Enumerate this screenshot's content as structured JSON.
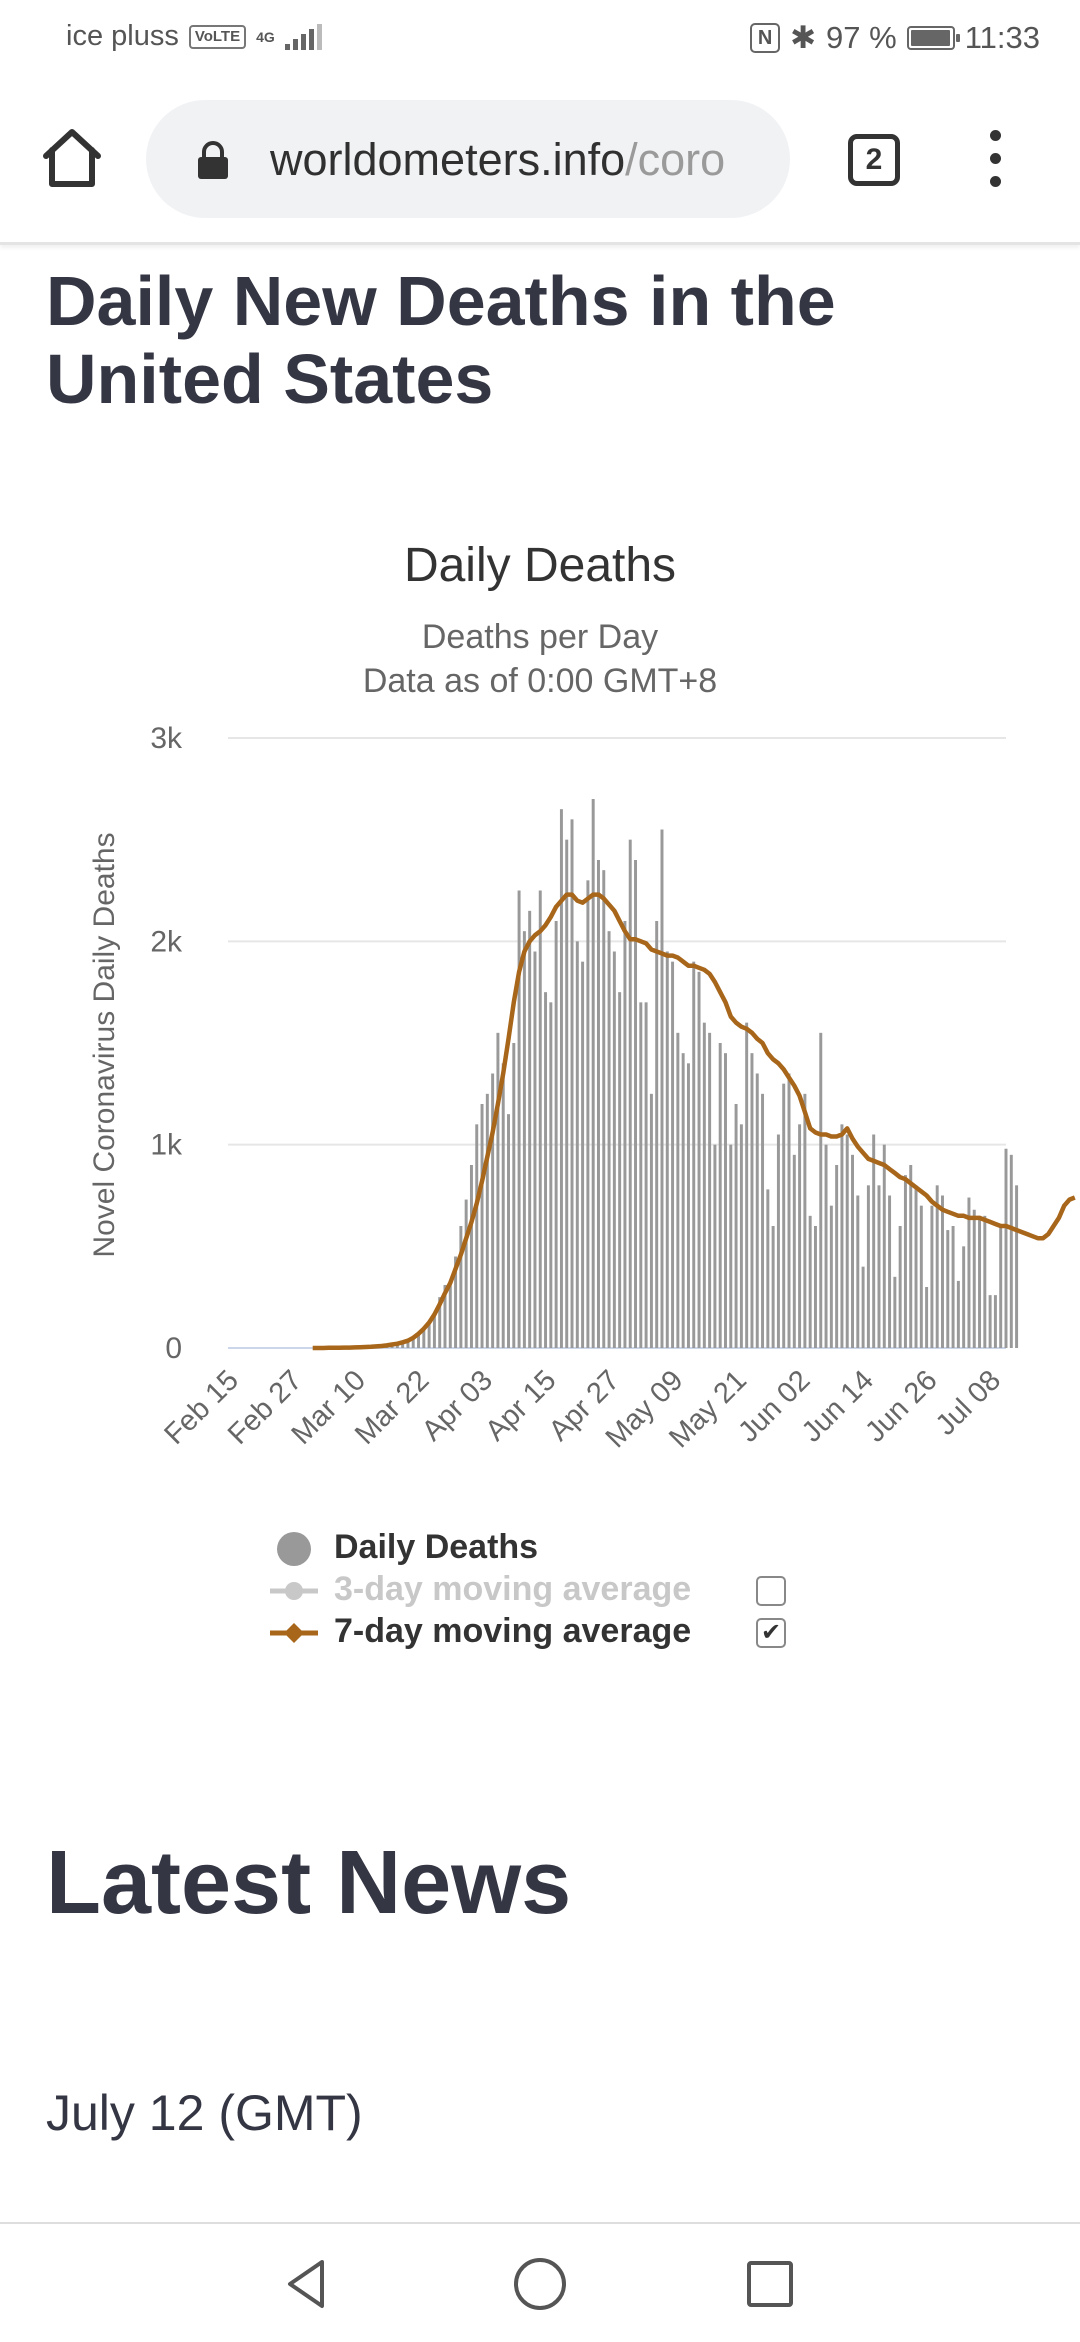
{
  "status_bar": {
    "carrier": "ice pluss",
    "volte": "VoLTE",
    "network": "4G",
    "battery_percent": "97 %",
    "battery_level": 0.97,
    "nfc": "N",
    "bluetooth": "✱",
    "time": "11:33"
  },
  "browser": {
    "url_host": "worldometers.info",
    "url_path": "/coro",
    "tab_count": "2",
    "icons": [
      "home-icon",
      "lock-icon",
      "tabs-icon",
      "more-vert-icon"
    ]
  },
  "page": {
    "title": "Daily New Deaths in the United States"
  },
  "chart_data": {
    "type": "bar",
    "title": "Daily Deaths",
    "subtitle": "Deaths per Day",
    "subtitle2": "Data as of 0:00 GMT+8",
    "ylabel": "Novel Coronavirus Daily Deaths",
    "xlabel": "",
    "ylim": [
      0,
      3000
    ],
    "yticks": [
      "0",
      "1k",
      "2k",
      "3k"
    ],
    "ytick_values": [
      0,
      1000,
      2000,
      3000
    ],
    "x_tick_labels": [
      "Feb 15",
      "Feb 27",
      "Mar 10",
      "Mar 22",
      "Apr 03",
      "Apr 15",
      "Apr 27",
      "May 09",
      "May 21",
      "Jun 02",
      "Jun 14",
      "Jun 26",
      "Jul 08"
    ],
    "x_start": "Feb 15",
    "x_end": "Jul 11",
    "series": [
      {
        "name": "Daily Deaths",
        "color": "#999999",
        "type": "bar",
        "start": "Mar 02",
        "values": [
          0,
          0,
          0,
          0,
          0,
          1,
          1,
          2,
          2,
          4,
          3,
          7,
          8,
          10,
          13,
          20,
          23,
          30,
          40,
          50,
          70,
          100,
          120,
          170,
          250,
          310,
          330,
          450,
          600,
          730,
          900,
          1100,
          1200,
          1250,
          1350,
          1550,
          1400,
          1150,
          1500,
          2250,
          2050,
          2150,
          1950,
          2250,
          1750,
          1700,
          2100,
          2650,
          2500,
          2600,
          2000,
          1900,
          2300,
          2700,
          2400,
          2350,
          2050,
          1950,
          1750,
          2100,
          2500,
          2400,
          1700,
          1700,
          1250,
          2100,
          2550,
          1950,
          1900,
          1550,
          1450,
          1400,
          1900,
          1850,
          1600,
          1550,
          1000,
          1500,
          1450,
          1000,
          1200,
          1100,
          1600,
          1450,
          1350,
          1250,
          780,
          600,
          1050,
          1300,
          1350,
          950,
          1100,
          1250,
          650,
          600,
          1550,
          1000,
          700,
          900,
          1100,
          1050,
          950,
          750,
          400,
          800,
          1050,
          800,
          1000,
          750,
          350,
          600,
          850,
          900,
          800,
          700,
          300,
          700,
          800,
          750,
          580,
          600,
          330,
          500,
          740,
          680,
          650,
          650,
          260,
          260,
          600,
          980,
          950,
          800
        ]
      },
      {
        "name": "3-day moving average",
        "color": "#c8c8c8",
        "hidden": true,
        "values": []
      },
      {
        "name": "7-day moving average",
        "color": "#a8661a",
        "type": "line",
        "start": "Mar 02",
        "values": [
          0,
          0,
          0,
          1,
          1,
          1,
          2,
          2,
          3,
          4,
          5,
          6,
          8,
          10,
          13,
          17,
          21,
          28,
          36,
          50,
          70,
          95,
          125,
          165,
          215,
          270,
          320,
          390,
          460,
          540,
          620,
          710,
          820,
          940,
          1060,
          1200,
          1350,
          1520,
          1700,
          1850,
          1950,
          2000,
          2030,
          2050,
          2080,
          2120,
          2170,
          2200,
          2230,
          2230,
          2200,
          2190,
          2210,
          2230,
          2230,
          2210,
          2180,
          2150,
          2100,
          2050,
          2010,
          2010,
          2000,
          1990,
          1960,
          1950,
          1940,
          1930,
          1930,
          1920,
          1900,
          1880,
          1880,
          1870,
          1860,
          1840,
          1800,
          1750,
          1700,
          1630,
          1600,
          1580,
          1570,
          1550,
          1520,
          1500,
          1450,
          1420,
          1400,
          1370,
          1330,
          1290,
          1240,
          1160,
          1080,
          1060,
          1050,
          1050,
          1040,
          1040,
          1050,
          1080,
          1030,
          990,
          960,
          930,
          920,
          910,
          900,
          880,
          860,
          840,
          830,
          810,
          790,
          770,
          750,
          720,
          700,
          680,
          670,
          660,
          650,
          650,
          640,
          640,
          640,
          630,
          620,
          610,
          600,
          600,
          590,
          580,
          570,
          560,
          550,
          540,
          540,
          560,
          600,
          640,
          700,
          730,
          740
        ]
      }
    ]
  },
  "legend": {
    "items": [
      {
        "label": "Daily Deaths",
        "color": "#999999",
        "checkbox": false,
        "active": true
      },
      {
        "label": "3-day moving average",
        "color": "#c8c8c8",
        "checkbox": true,
        "checked": false,
        "active": false
      },
      {
        "label": "7-day moving average",
        "color": "#a8661a",
        "checkbox": true,
        "checked": true,
        "active": true
      }
    ],
    "check_mark": "✔"
  },
  "news": {
    "title": "Latest News",
    "date": "July 12 (GMT)"
  },
  "nav_bar": {
    "icons": [
      "back-icon",
      "home-circle-icon",
      "recents-icon"
    ]
  }
}
